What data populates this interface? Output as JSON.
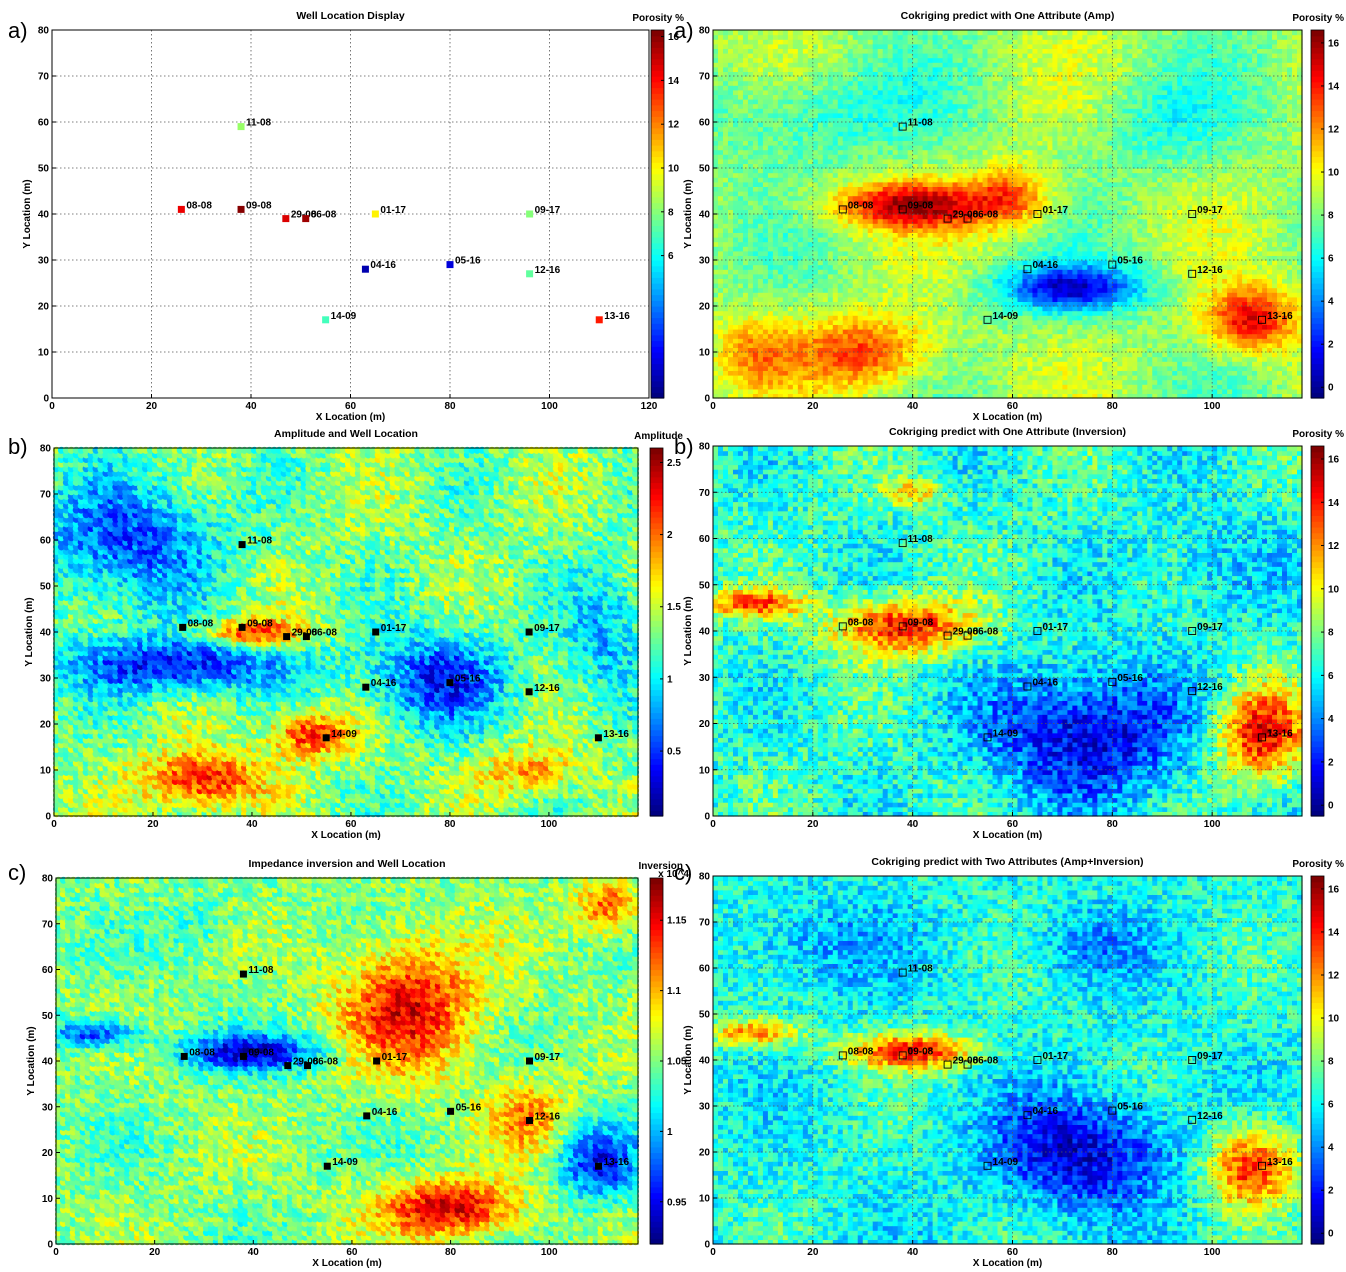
{
  "chart_data": [
    {
      "type": "scatter",
      "tag": "a)",
      "title": "Well Location Display",
      "colorbar_title": "Porosity %",
      "xlabel": "X Location (m)",
      "ylabel": "Y Location (m)",
      "xlim": [
        0,
        120
      ],
      "ylim": [
        0,
        80
      ],
      "xticks": [
        "0",
        "20",
        "40",
        "60",
        "80",
        "100",
        "120"
      ],
      "yticks": [
        "0",
        "10",
        "20",
        "30",
        "40",
        "50",
        "60",
        "70",
        "80"
      ],
      "grid": true,
      "colorbar_range": [
        -0.5,
        16.3
      ],
      "colorbar_ticks": [
        "6",
        "8",
        "10",
        "12",
        "14",
        "16"
      ],
      "well_marker": "filled-color",
      "field": "none"
    },
    {
      "type": "heatmap",
      "tag": "a)",
      "title": "Cokriging predict with One Attribute (Amp)",
      "colorbar_title": "Porosity %",
      "xlabel": "X Location (m)",
      "ylabel": "Y Location (m)",
      "xlim": [
        0,
        118
      ],
      "ylim": [
        0,
        80
      ],
      "xticks": [
        "0",
        "20",
        "40",
        "60",
        "80",
        "100"
      ],
      "yticks": [
        "0",
        "10",
        "20",
        "30",
        "40",
        "50",
        "60",
        "70",
        "80"
      ],
      "grid": true,
      "colorbar_range": [
        -0.5,
        16.6
      ],
      "colorbar_ticks": [
        "0",
        "2",
        "4",
        "6",
        "8",
        "10",
        "12",
        "14",
        "16"
      ],
      "well_marker": "open-square",
      "field": "amp_predict"
    },
    {
      "type": "heatmap",
      "tag": "b)",
      "title": "Amplitude and Well Location",
      "colorbar_title": "Amplitude",
      "xlabel": "X Location (m)",
      "ylabel": "Y Location (m)",
      "xlim": [
        0,
        118
      ],
      "ylim": [
        0,
        80
      ],
      "xticks": [
        "0",
        "20",
        "40",
        "60",
        "80",
        "100"
      ],
      "yticks": [
        "0",
        "10",
        "20",
        "30",
        "40",
        "50",
        "60",
        "70",
        "80"
      ],
      "grid": false,
      "colorbar_range": [
        0.05,
        2.6
      ],
      "colorbar_ticks": [
        "0.5",
        "1",
        "1.5",
        "2",
        "2.5"
      ],
      "well_marker": "filled-black",
      "field": "amplitude"
    },
    {
      "type": "heatmap",
      "tag": "b)",
      "title": "Cokriging predict with One Attribute (Inversion)",
      "colorbar_title": "Porosity %",
      "xlabel": "X Location (m)",
      "ylabel": "Y Location (m)",
      "xlim": [
        0,
        118
      ],
      "ylim": [
        0,
        80
      ],
      "xticks": [
        "0",
        "20",
        "40",
        "60",
        "80",
        "100"
      ],
      "yticks": [
        "0",
        "10",
        "20",
        "30",
        "40",
        "50",
        "60",
        "70",
        "80"
      ],
      "grid": true,
      "colorbar_range": [
        -0.5,
        16.6
      ],
      "colorbar_ticks": [
        "0",
        "2",
        "4",
        "6",
        "8",
        "10",
        "12",
        "14",
        "16"
      ],
      "well_marker": "open-square",
      "field": "inv_predict"
    },
    {
      "type": "heatmap",
      "tag": "c)",
      "title": "Impedance inversion and Well Location",
      "colorbar_title": "Inversion",
      "colorbar_exponent": "x 10^4",
      "xlabel": "X Location (m)",
      "ylabel": "Y Location (m)",
      "xlim": [
        0,
        118
      ],
      "ylim": [
        0,
        80
      ],
      "xticks": [
        "0",
        "20",
        "40",
        "60",
        "80",
        "100"
      ],
      "yticks": [
        "0",
        "10",
        "20",
        "30",
        "40",
        "50",
        "60",
        "70",
        "80"
      ],
      "grid": false,
      "colorbar_range": [
        0.92,
        1.18
      ],
      "colorbar_ticks": [
        "0.95",
        "1",
        "1.05",
        "1.1",
        "1.15"
      ],
      "well_marker": "filled-black",
      "field": "inversion"
    },
    {
      "type": "heatmap",
      "tag": "c)",
      "title": "Cokriging predict with Two Attributes (Amp+Inversion)",
      "colorbar_title": "Porosity %",
      "xlabel": "X Location (m)",
      "ylabel": "Y Location (m)",
      "xlim": [
        0,
        118
      ],
      "ylim": [
        0,
        80
      ],
      "xticks": [
        "0",
        "20",
        "40",
        "60",
        "80",
        "100"
      ],
      "yticks": [
        "0",
        "10",
        "20",
        "30",
        "40",
        "50",
        "60",
        "70",
        "80"
      ],
      "grid": true,
      "colorbar_range": [
        -0.5,
        16.6
      ],
      "colorbar_ticks": [
        "0",
        "2",
        "4",
        "6",
        "8",
        "10",
        "12",
        "14",
        "16"
      ],
      "well_marker": "open-square",
      "field": "two_predict"
    }
  ],
  "wells": [
    {
      "name": "11-08",
      "x": 38,
      "y": 59,
      "porosity": 8.3
    },
    {
      "name": "08-08",
      "x": 26,
      "y": 41,
      "porosity": 14.5
    },
    {
      "name": "09-08",
      "x": 38,
      "y": 41,
      "porosity": 16.2
    },
    {
      "name": "29-08",
      "x": 47,
      "y": 39,
      "porosity": 14.8
    },
    {
      "name": "06-08",
      "x": 51,
      "y": 39,
      "porosity": 15.8
    },
    {
      "name": "01-17",
      "x": 65,
      "y": 40,
      "porosity": 10.2
    },
    {
      "name": "09-17",
      "x": 96,
      "y": 40,
      "porosity": 8.0
    },
    {
      "name": "04-16",
      "x": 63,
      "y": 28,
      "porosity": 0.3
    },
    {
      "name": "05-16",
      "x": 80,
      "y": 29,
      "porosity": 1.0
    },
    {
      "name": "12-16",
      "x": 96,
      "y": 27,
      "porosity": 7.4
    },
    {
      "name": "14-09",
      "x": 55,
      "y": 17,
      "porosity": 6.9
    },
    {
      "name": "13-16",
      "x": 110,
      "y": 17,
      "porosity": 13.8
    }
  ]
}
